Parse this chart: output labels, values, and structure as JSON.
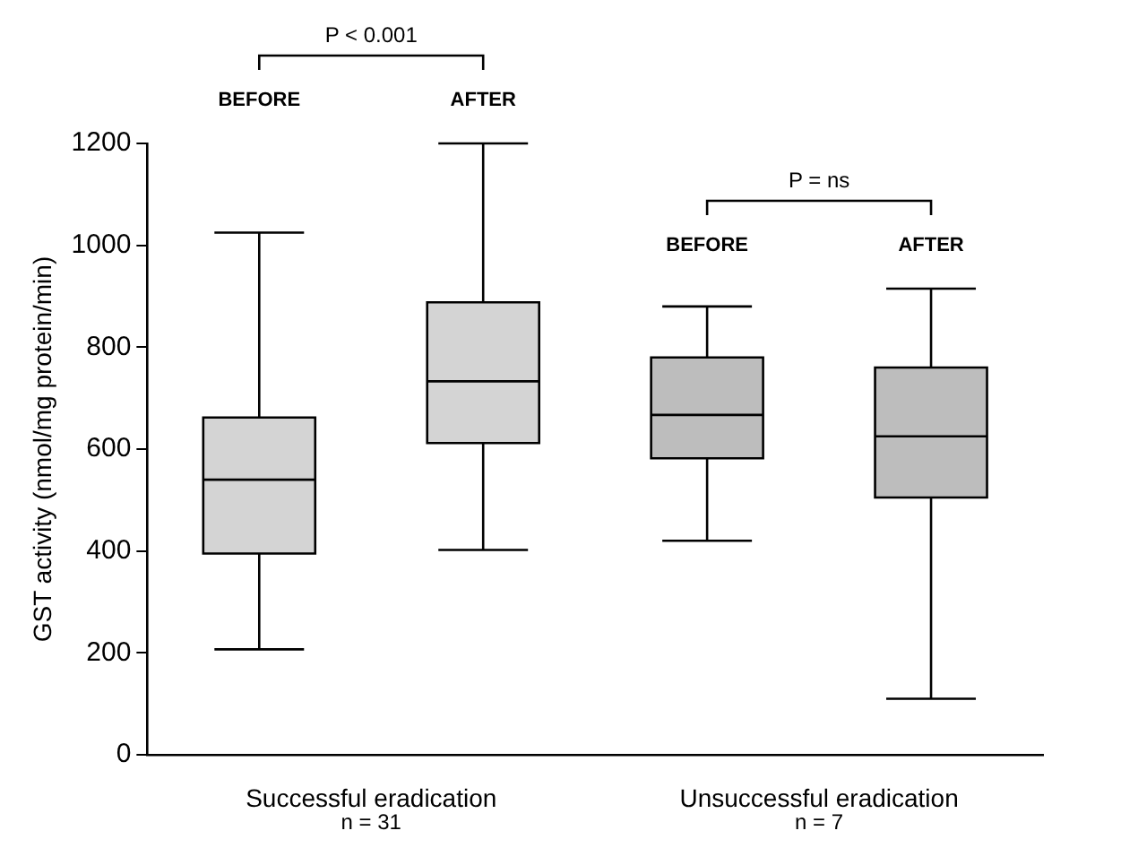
{
  "chart_data": {
    "type": "box",
    "ylabel": "GST activity (nmol/mg protein/min)",
    "categories": [
      "BEFORE",
      "AFTER",
      "BEFORE",
      "AFTER"
    ],
    "boxes": [
      {
        "low": 207,
        "q1": 395,
        "median": 540,
        "q3": 662,
        "high": 1025
      },
      {
        "low": 402,
        "q1": 612,
        "median": 733,
        "q3": 888,
        "high": 1200
      },
      {
        "low": 420,
        "q1": 582,
        "median": 667,
        "q3": 780,
        "high": 880
      },
      {
        "low": 110,
        "q1": 505,
        "median": 625,
        "q3": 760,
        "high": 915
      }
    ],
    "colors": [
      "#d4d4d4",
      "#d4d4d4",
      "#bdbdbd",
      "#bdbdbd"
    ],
    "ylim": [
      0,
      1200
    ],
    "yticks": [
      0,
      200,
      400,
      600,
      800,
      1000,
      1200
    ],
    "grid": false,
    "legend": false,
    "annotations": [
      "P < 0.001",
      "P = ns",
      "Successful eradication\nn = 31",
      "Unsuccessful eradication\nn = 7"
    ]
  }
}
